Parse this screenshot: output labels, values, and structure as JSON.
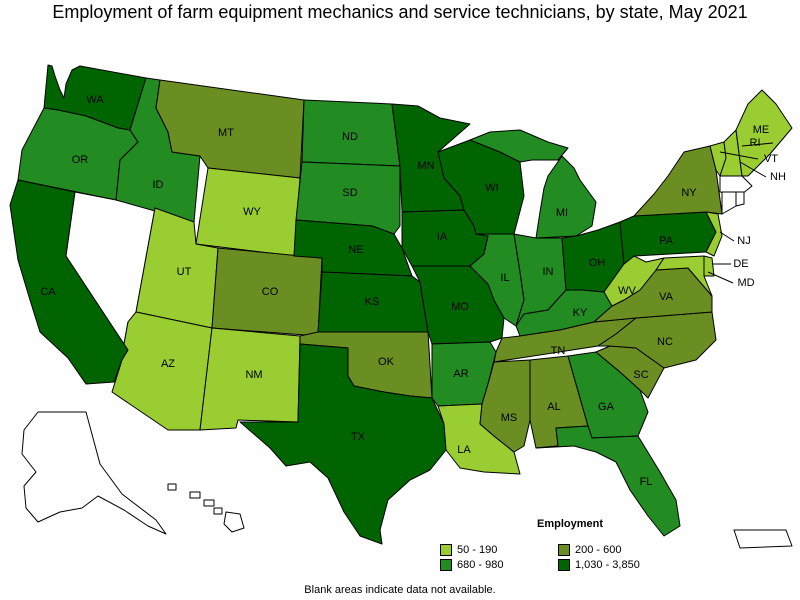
{
  "title": "Employment of farm equipment mechanics and service technicians, by state, May 2021",
  "legend": {
    "title": "Employment",
    "items": [
      {
        "label": "50 - 190",
        "color": "#9acd32"
      },
      {
        "label": "200 - 600",
        "color": "#6b8e23"
      },
      {
        "label": "680 - 980",
        "color": "#228b22"
      },
      {
        "label": "1,030 - 3,850",
        "color": "#006400"
      }
    ]
  },
  "note": "Blank areas indicate data not available.",
  "map_data": {
    "no_data_color": "#ffffff",
    "states": [
      {
        "abbr": "WA",
        "class": "1,030 - 3,850"
      },
      {
        "abbr": "OR",
        "class": "680 - 980"
      },
      {
        "abbr": "CA",
        "class": "1,030 - 3,850"
      },
      {
        "abbr": "NV",
        "class": "no data"
      },
      {
        "abbr": "ID",
        "class": "680 - 980"
      },
      {
        "abbr": "MT",
        "class": "200 - 600"
      },
      {
        "abbr": "WY",
        "class": "50 - 190"
      },
      {
        "abbr": "UT",
        "class": "50 - 190"
      },
      {
        "abbr": "AZ",
        "class": "50 - 190"
      },
      {
        "abbr": "CO",
        "class": "200 - 600"
      },
      {
        "abbr": "NM",
        "class": "50 - 190"
      },
      {
        "abbr": "ND",
        "class": "680 - 980"
      },
      {
        "abbr": "SD",
        "class": "680 - 980"
      },
      {
        "abbr": "NE",
        "class": "1,030 - 3,850"
      },
      {
        "abbr": "KS",
        "class": "1,030 - 3,850"
      },
      {
        "abbr": "OK",
        "class": "200 - 600"
      },
      {
        "abbr": "TX",
        "class": "1,030 - 3,850"
      },
      {
        "abbr": "MN",
        "class": "1,030 - 3,850"
      },
      {
        "abbr": "IA",
        "class": "1,030 - 3,850"
      },
      {
        "abbr": "MO",
        "class": "1,030 - 3,850"
      },
      {
        "abbr": "AR",
        "class": "680 - 980"
      },
      {
        "abbr": "LA",
        "class": "50 - 190"
      },
      {
        "abbr": "WI",
        "class": "1,030 - 3,850"
      },
      {
        "abbr": "IL",
        "class": "680 - 980"
      },
      {
        "abbr": "MI",
        "class": "680 - 980"
      },
      {
        "abbr": "IN",
        "class": "680 - 980"
      },
      {
        "abbr": "OH",
        "class": "1,030 - 3,850"
      },
      {
        "abbr": "KY",
        "class": "680 - 980"
      },
      {
        "abbr": "TN",
        "class": "200 - 600"
      },
      {
        "abbr": "MS",
        "class": "200 - 600"
      },
      {
        "abbr": "AL",
        "class": "200 - 600"
      },
      {
        "abbr": "GA",
        "class": "680 - 980"
      },
      {
        "abbr": "FL",
        "class": "680 - 980"
      },
      {
        "abbr": "SC",
        "class": "200 - 600"
      },
      {
        "abbr": "NC",
        "class": "200 - 600"
      },
      {
        "abbr": "VA",
        "class": "200 - 600"
      },
      {
        "abbr": "WV",
        "class": "50 - 190"
      },
      {
        "abbr": "PA",
        "class": "1,030 - 3,850"
      },
      {
        "abbr": "NY",
        "class": "200 - 600"
      },
      {
        "abbr": "VT",
        "class": "50 - 190"
      },
      {
        "abbr": "NH",
        "class": "50 - 190"
      },
      {
        "abbr": "ME",
        "class": "50 - 190"
      },
      {
        "abbr": "MA",
        "class": "no data"
      },
      {
        "abbr": "CT",
        "class": "no data"
      },
      {
        "abbr": "RI",
        "class": "no data"
      },
      {
        "abbr": "NJ",
        "class": "50 - 190"
      },
      {
        "abbr": "DE",
        "class": "50 - 190"
      },
      {
        "abbr": "MD",
        "class": "50 - 190"
      },
      {
        "abbr": "AK",
        "class": "no data"
      },
      {
        "abbr": "HI",
        "class": "no data"
      },
      {
        "abbr": "PR",
        "class": "no data"
      }
    ]
  }
}
